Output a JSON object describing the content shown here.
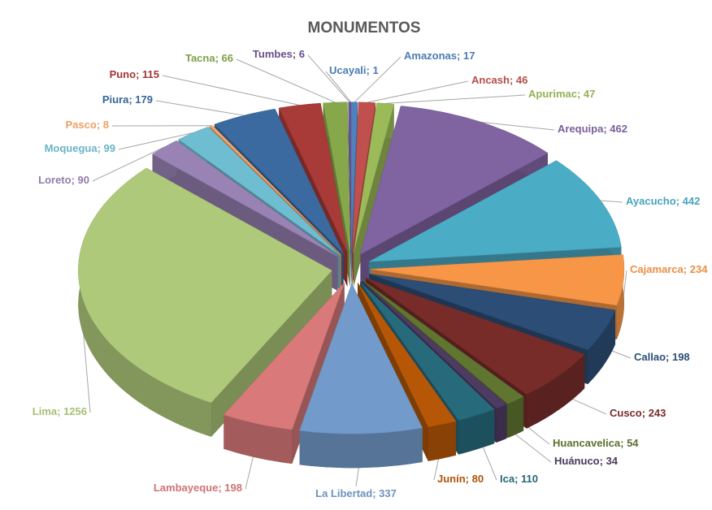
{
  "chart_data": {
    "type": "pie3d",
    "title": "MONUMENTOS",
    "label_separator": "; ",
    "categories": [
      "Amazonas",
      "Ancash",
      "Apurimac",
      "Arequipa",
      "Ayacucho",
      "Cajamarca",
      "Callao",
      "Cusco",
      "Huancavelica",
      "Huánuco",
      "Ica",
      "Junín",
      "La Libertad",
      "Lambayeque",
      "Lima",
      "Loreto",
      "Moquegua",
      "Pasco",
      "Piura",
      "Puno",
      "Tacna",
      "Tumbes",
      "Ucayali"
    ],
    "values": [
      17,
      46,
      47,
      462,
      442,
      234,
      198,
      243,
      54,
      34,
      110,
      80,
      337,
      198,
      1256,
      90,
      99,
      8,
      179,
      115,
      66,
      6,
      1
    ],
    "colors": [
      "#4f81bd",
      "#c0504d",
      "#9bbb59",
      "#8064a2",
      "#4bacc6",
      "#f79646",
      "#2c4d75",
      "#772c2a",
      "#5f7530",
      "#4d3b62",
      "#276a7c",
      "#b65708",
      "#729aca",
      "#d9797a",
      "#afc97a",
      "#9983b5",
      "#6fbdd1",
      "#f9a86a",
      "#3a6aa0",
      "#a83a37",
      "#86a84a",
      "#6c5390",
      "#4f81bd"
    ]
  }
}
